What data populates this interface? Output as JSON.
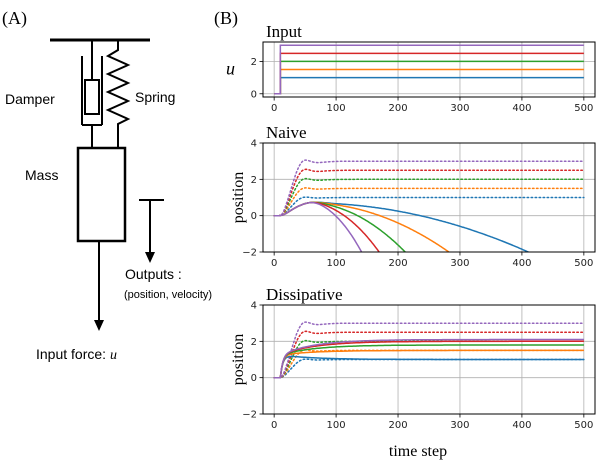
{
  "panel_a": {
    "label": "(A)",
    "damper": "Damper",
    "spring": "Spring",
    "mass": "Mass",
    "outputs_line1": "Outputs :",
    "outputs_line2": "(position, velocity)",
    "input_prefix": "Input force: ",
    "input_symbol": "u"
  },
  "panel_b": {
    "label": "(B)",
    "xlabel": "time step"
  },
  "colors": [
    "#1f77b4",
    "#ff7f0e",
    "#2ca02c",
    "#d62728",
    "#9467bd"
  ],
  "chart_data": [
    {
      "type": "line",
      "title": "Input",
      "ylabel": "u",
      "xlim": [
        -18,
        518
      ],
      "ylim": [
        -0.2,
        3.2
      ],
      "xticks": [
        0,
        100,
        200,
        300,
        400,
        500
      ],
      "yticks": [
        0,
        2
      ],
      "grid": true,
      "step_time": 10,
      "series": [
        {
          "color": "#1f77b4",
          "final_value": 1.0
        },
        {
          "color": "#ff7f0e",
          "final_value": 1.5
        },
        {
          "color": "#2ca02c",
          "final_value": 2.0
        },
        {
          "color": "#d62728",
          "final_value": 2.5
        },
        {
          "color": "#9467bd",
          "final_value": 3.0
        }
      ]
    },
    {
      "type": "line",
      "title": "Naive",
      "ylabel": "position",
      "xlim": [
        -18,
        518
      ],
      "ylim": [
        -2,
        4
      ],
      "xticks": [
        0,
        100,
        200,
        300,
        400,
        500
      ],
      "yticks": [
        -2,
        0,
        2,
        4
      ],
      "grid": true,
      "true_response_style": "dotted",
      "model_response_style": "solid",
      "series": [
        {
          "color": "#1f77b4",
          "true_final": 1.0,
          "true_peak": 1.2,
          "model_plateau": 0.7,
          "model_hits_minus2_at": 418
        },
        {
          "color": "#ff7f0e",
          "true_final": 1.5,
          "true_peak": 1.8,
          "model_plateau": 0.7,
          "model_hits_minus2_at": 287
        },
        {
          "color": "#2ca02c",
          "true_final": 2.0,
          "true_peak": 2.4,
          "model_plateau": 0.7,
          "model_hits_minus2_at": 215
        },
        {
          "color": "#d62728",
          "true_final": 2.5,
          "true_peak": 3.0,
          "model_plateau": 0.7,
          "model_hits_minus2_at": 172
        },
        {
          "color": "#9467bd",
          "true_final": 3.0,
          "true_peak": 3.6,
          "model_plateau": 0.7,
          "model_hits_minus2_at": 143
        }
      ]
    },
    {
      "type": "line",
      "title": "Dissipative",
      "ylabel": "position",
      "xlim": [
        -18,
        518
      ],
      "ylim": [
        -2,
        4
      ],
      "xticks": [
        0,
        100,
        200,
        300,
        400,
        500
      ],
      "yticks": [
        -2,
        0,
        2,
        4
      ],
      "grid": true,
      "true_response_style": "dotted",
      "model_response_style": "solid",
      "series": [
        {
          "color": "#1f77b4",
          "true_final": 1.0,
          "true_peak": 1.2,
          "model_final": 1.0
        },
        {
          "color": "#ff7f0e",
          "true_final": 1.5,
          "true_peak": 1.8,
          "model_final": 1.5
        },
        {
          "color": "#2ca02c",
          "true_final": 2.0,
          "true_peak": 2.4,
          "model_final": 1.8
        },
        {
          "color": "#d62728",
          "true_final": 2.5,
          "true_peak": 3.0,
          "model_final": 2.0
        },
        {
          "color": "#9467bd",
          "true_final": 3.0,
          "true_peak": 3.6,
          "model_final": 2.1
        }
      ]
    }
  ]
}
